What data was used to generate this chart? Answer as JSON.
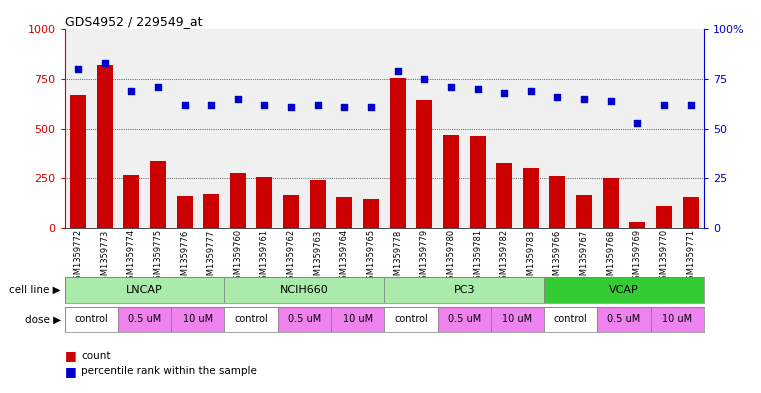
{
  "title": "GDS4952 / 229549_at",
  "samples": [
    "GSM1359772",
    "GSM1359773",
    "GSM1359774",
    "GSM1359775",
    "GSM1359776",
    "GSM1359777",
    "GSM1359760",
    "GSM1359761",
    "GSM1359762",
    "GSM1359763",
    "GSM1359764",
    "GSM1359765",
    "GSM1359778",
    "GSM1359779",
    "GSM1359780",
    "GSM1359781",
    "GSM1359782",
    "GSM1359783",
    "GSM1359766",
    "GSM1359767",
    "GSM1359768",
    "GSM1359769",
    "GSM1359770",
    "GSM1359771"
  ],
  "counts": [
    670,
    820,
    265,
    335,
    160,
    170,
    275,
    255,
    165,
    240,
    155,
    145,
    755,
    645,
    470,
    465,
    325,
    300,
    260,
    165,
    250,
    30,
    110,
    155
  ],
  "percentiles": [
    80,
    83,
    69,
    71,
    62,
    62,
    65,
    62,
    61,
    62,
    61,
    61,
    79,
    75,
    71,
    70,
    68,
    69,
    66,
    65,
    64,
    53,
    62,
    62
  ],
  "cell_lines": [
    {
      "name": "LNCAP",
      "start": 0,
      "end": 6,
      "color": "#aaeaaa"
    },
    {
      "name": "NCIH660",
      "start": 6,
      "end": 12,
      "color": "#aaeaaa"
    },
    {
      "name": "PC3",
      "start": 12,
      "end": 18,
      "color": "#aaeaaa"
    },
    {
      "name": "VCAP",
      "start": 18,
      "end": 24,
      "color": "#33cc33"
    }
  ],
  "doses": [
    {
      "label": "control",
      "start": 0,
      "end": 2,
      "color": "#ffffff"
    },
    {
      "label": "0.5 uM",
      "start": 2,
      "end": 4,
      "color": "#ee82ee"
    },
    {
      "label": "10 uM",
      "start": 4,
      "end": 6,
      "color": "#ee82ee"
    },
    {
      "label": "control",
      "start": 6,
      "end": 8,
      "color": "#ffffff"
    },
    {
      "label": "0.5 uM",
      "start": 8,
      "end": 10,
      "color": "#ee82ee"
    },
    {
      "label": "10 uM",
      "start": 10,
      "end": 12,
      "color": "#ee82ee"
    },
    {
      "label": "control",
      "start": 12,
      "end": 14,
      "color": "#ffffff"
    },
    {
      "label": "0.5 uM",
      "start": 14,
      "end": 16,
      "color": "#ee82ee"
    },
    {
      "label": "10 uM",
      "start": 16,
      "end": 18,
      "color": "#ee82ee"
    },
    {
      "label": "control",
      "start": 18,
      "end": 20,
      "color": "#ffffff"
    },
    {
      "label": "0.5 uM",
      "start": 20,
      "end": 22,
      "color": "#ee82ee"
    },
    {
      "label": "10 uM",
      "start": 22,
      "end": 24,
      "color": "#ee82ee"
    }
  ],
  "bar_color": "#cc0000",
  "dot_color": "#0000cc",
  "left_ylim": [
    0,
    1000
  ],
  "right_ylim": [
    0,
    100
  ],
  "left_yticks": [
    0,
    250,
    500,
    750,
    1000
  ],
  "right_yticks": [
    0,
    25,
    50,
    75,
    100
  ],
  "grid_values": [
    250,
    500,
    750
  ],
  "bg_color": "#ffffff",
  "plot_bg": "#f0f0f0",
  "label_cell_line": "cell line",
  "label_dose": "dose"
}
